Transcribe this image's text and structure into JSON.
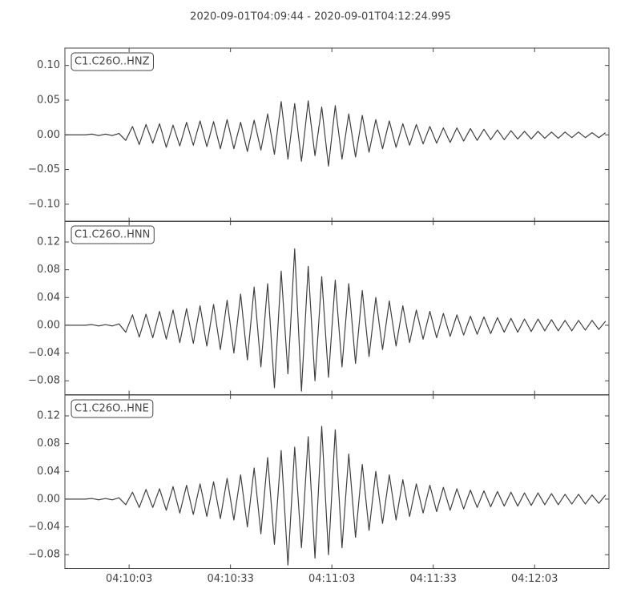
{
  "title": "2020-09-01T04:09:44  -  2020-09-01T04:12:24.995",
  "chart_data": [
    {
      "type": "line",
      "label": "C1.C26O..HNZ",
      "color": "#404040",
      "xlim": [
        "04:09:44",
        "04:12:24.995"
      ],
      "ylim": [
        -0.125,
        0.125
      ],
      "yticks": [
        {
          "value": -0.1,
          "label": "−0.10"
        },
        {
          "value": -0.05,
          "label": "−0.05"
        },
        {
          "value": 0,
          "label": "0.00"
        },
        {
          "value": 0.05,
          "label": "0.05"
        },
        {
          "value": 0.1,
          "label": "0.10"
        }
      ],
      "x": [
        "04:09:44",
        "04:09:46",
        "04:09:48",
        "04:09:50",
        "04:09:52",
        "04:09:54",
        "04:09:56",
        "04:09:58",
        "04:10:00",
        "04:10:02",
        "04:10:04",
        "04:10:06",
        "04:10:08",
        "04:10:10",
        "04:10:12",
        "04:10:14",
        "04:10:16",
        "04:10:18",
        "04:10:20",
        "04:10:22",
        "04:10:24",
        "04:10:26",
        "04:10:28",
        "04:10:30",
        "04:10:32",
        "04:10:34",
        "04:10:36",
        "04:10:38",
        "04:10:40",
        "04:10:42",
        "04:10:44",
        "04:10:46",
        "04:10:48",
        "04:10:50",
        "04:10:52",
        "04:10:54",
        "04:10:56",
        "04:10:58",
        "04:11:00",
        "04:11:02",
        "04:11:04",
        "04:11:06",
        "04:11:08",
        "04:11:10",
        "04:11:12",
        "04:11:14",
        "04:11:16",
        "04:11:18",
        "04:11:20",
        "04:11:22",
        "04:11:24",
        "04:11:26",
        "04:11:28",
        "04:11:30",
        "04:11:32",
        "04:11:34",
        "04:11:36",
        "04:11:38",
        "04:11:40",
        "04:11:42",
        "04:11:44",
        "04:11:46",
        "04:11:48",
        "04:11:50",
        "04:11:52",
        "04:11:54",
        "04:11:56",
        "04:11:58",
        "04:12:00",
        "04:12:02",
        "04:12:04",
        "04:12:06",
        "04:12:08",
        "04:12:10",
        "04:12:12",
        "04:12:14",
        "04:12:16",
        "04:12:18",
        "04:12:20",
        "04:12:22",
        "04:12:24"
      ],
      "values": [
        0,
        0,
        0,
        0,
        0.001,
        -0.001,
        0.001,
        -0.001,
        0.002,
        -0.008,
        0.012,
        -0.014,
        0.015,
        -0.012,
        0.016,
        -0.018,
        0.014,
        -0.016,
        0.018,
        -0.015,
        0.02,
        -0.017,
        0.019,
        -0.02,
        0.022,
        -0.02,
        0.018,
        -0.024,
        0.021,
        -0.022,
        0.03,
        -0.028,
        0.048,
        -0.035,
        0.045,
        -0.038,
        0.049,
        -0.03,
        0.04,
        -0.045,
        0.042,
        -0.035,
        0.03,
        -0.032,
        0.028,
        -0.025,
        0.022,
        -0.02,
        0.02,
        -0.018,
        0.016,
        -0.015,
        0.015,
        -0.013,
        0.012,
        -0.012,
        0.01,
        -0.011,
        0.01,
        -0.009,
        0.009,
        -0.008,
        0.008,
        -0.007,
        0.007,
        -0.007,
        0.006,
        -0.006,
        0.005,
        -0.006,
        0.005,
        -0.005,
        0.004,
        -0.005,
        0.004,
        -0.004,
        0.004,
        -0.004,
        0.003,
        -0.004,
        0.003
      ]
    },
    {
      "type": "line",
      "label": "C1.C26O..HNN",
      "color": "#404040",
      "xlim": [
        "04:09:44",
        "04:12:24.995"
      ],
      "ylim": [
        -0.1,
        0.15
      ],
      "yticks": [
        {
          "value": -0.08,
          "label": "−0.08"
        },
        {
          "value": -0.04,
          "label": "−0.04"
        },
        {
          "value": 0,
          "label": "0.00"
        },
        {
          "value": 0.04,
          "label": "0.04"
        },
        {
          "value": 0.08,
          "label": "0.08"
        },
        {
          "value": 0.12,
          "label": "0.12"
        }
      ],
      "x": [
        "04:09:44",
        "04:09:46",
        "04:09:48",
        "04:09:50",
        "04:09:52",
        "04:09:54",
        "04:09:56",
        "04:09:58",
        "04:10:00",
        "04:10:02",
        "04:10:04",
        "04:10:06",
        "04:10:08",
        "04:10:10",
        "04:10:12",
        "04:10:14",
        "04:10:16",
        "04:10:18",
        "04:10:20",
        "04:10:22",
        "04:10:24",
        "04:10:26",
        "04:10:28",
        "04:10:30",
        "04:10:32",
        "04:10:34",
        "04:10:36",
        "04:10:38",
        "04:10:40",
        "04:10:42",
        "04:10:44",
        "04:10:46",
        "04:10:48",
        "04:10:50",
        "04:10:52",
        "04:10:54",
        "04:10:56",
        "04:10:58",
        "04:11:00",
        "04:11:02",
        "04:11:04",
        "04:11:06",
        "04:11:08",
        "04:11:10",
        "04:11:12",
        "04:11:14",
        "04:11:16",
        "04:11:18",
        "04:11:20",
        "04:11:22",
        "04:11:24",
        "04:11:26",
        "04:11:28",
        "04:11:30",
        "04:11:32",
        "04:11:34",
        "04:11:36",
        "04:11:38",
        "04:11:40",
        "04:11:42",
        "04:11:44",
        "04:11:46",
        "04:11:48",
        "04:11:50",
        "04:11:52",
        "04:11:54",
        "04:11:56",
        "04:11:58",
        "04:12:00",
        "04:12:02",
        "04:12:04",
        "04:12:06",
        "04:12:08",
        "04:12:10",
        "04:12:12",
        "04:12:14",
        "04:12:16",
        "04:12:18",
        "04:12:20",
        "04:12:22",
        "04:12:24"
      ],
      "values": [
        0,
        0,
        0,
        0,
        0.001,
        -0.001,
        0.001,
        -0.001,
        0.002,
        -0.01,
        0.015,
        -0.017,
        0.016,
        -0.018,
        0.02,
        -0.02,
        0.022,
        -0.025,
        0.024,
        -0.026,
        0.028,
        -0.03,
        0.03,
        -0.035,
        0.036,
        -0.04,
        0.045,
        -0.05,
        0.055,
        -0.06,
        0.06,
        -0.09,
        0.078,
        -0.07,
        0.11,
        -0.095,
        0.085,
        -0.08,
        0.07,
        -0.075,
        0.065,
        -0.06,
        0.06,
        -0.055,
        0.05,
        -0.045,
        0.04,
        -0.035,
        0.035,
        -0.03,
        0.028,
        -0.025,
        0.022,
        -0.02,
        0.02,
        -0.018,
        0.017,
        -0.016,
        0.015,
        -0.014,
        0.013,
        -0.013,
        0.012,
        -0.012,
        0.011,
        -0.01,
        0.01,
        -0.01,
        0.009,
        -0.009,
        0.009,
        -0.008,
        0.008,
        -0.008,
        0.007,
        -0.008,
        0.007,
        -0.007,
        0.007,
        -0.006,
        0.006
      ]
    },
    {
      "type": "line",
      "label": "C1.C26O..HNE",
      "color": "#404040",
      "xlim": [
        "04:09:44",
        "04:12:24.995"
      ],
      "xticks": [
        "04:10:03",
        "04:10:33",
        "04:11:03",
        "04:11:33",
        "04:12:03"
      ],
      "ylim": [
        -0.1,
        0.15
      ],
      "yticks": [
        {
          "value": -0.08,
          "label": "−0.08"
        },
        {
          "value": -0.04,
          "label": "−0.04"
        },
        {
          "value": 0,
          "label": "0.00"
        },
        {
          "value": 0.04,
          "label": "0.04"
        },
        {
          "value": 0.08,
          "label": "0.08"
        },
        {
          "value": 0.12,
          "label": "0.12"
        }
      ],
      "x": [
        "04:09:44",
        "04:09:46",
        "04:09:48",
        "04:09:50",
        "04:09:52",
        "04:09:54",
        "04:09:56",
        "04:09:58",
        "04:10:00",
        "04:10:02",
        "04:10:04",
        "04:10:06",
        "04:10:08",
        "04:10:10",
        "04:10:12",
        "04:10:14",
        "04:10:16",
        "04:10:18",
        "04:10:20",
        "04:10:22",
        "04:10:24",
        "04:10:26",
        "04:10:28",
        "04:10:30",
        "04:10:32",
        "04:10:34",
        "04:10:36",
        "04:10:38",
        "04:10:40",
        "04:10:42",
        "04:10:44",
        "04:10:46",
        "04:10:48",
        "04:10:50",
        "04:10:52",
        "04:10:54",
        "04:10:56",
        "04:10:58",
        "04:11:00",
        "04:11:02",
        "04:11:04",
        "04:11:06",
        "04:11:08",
        "04:11:10",
        "04:11:12",
        "04:11:14",
        "04:11:16",
        "04:11:18",
        "04:11:20",
        "04:11:22",
        "04:11:24",
        "04:11:26",
        "04:11:28",
        "04:11:30",
        "04:11:32",
        "04:11:34",
        "04:11:36",
        "04:11:38",
        "04:11:40",
        "04:11:42",
        "04:11:44",
        "04:11:46",
        "04:11:48",
        "04:11:50",
        "04:11:52",
        "04:11:54",
        "04:11:56",
        "04:11:58",
        "04:12:00",
        "04:12:02",
        "04:12:04",
        "04:12:06",
        "04:12:08",
        "04:12:10",
        "04:12:12",
        "04:12:14",
        "04:12:16",
        "04:12:18",
        "04:12:20",
        "04:12:22",
        "04:12:24"
      ],
      "values": [
        0,
        0,
        0,
        0,
        0.001,
        -0.001,
        0.001,
        -0.001,
        0.002,
        -0.008,
        0.01,
        -0.012,
        0.014,
        -0.012,
        0.015,
        -0.016,
        0.018,
        -0.02,
        0.02,
        -0.022,
        0.022,
        -0.025,
        0.025,
        -0.028,
        0.03,
        -0.03,
        0.035,
        -0.04,
        0.045,
        -0.05,
        0.06,
        -0.065,
        0.07,
        -0.095,
        0.075,
        -0.07,
        0.09,
        -0.085,
        0.105,
        -0.08,
        0.1,
        -0.07,
        0.065,
        -0.055,
        0.05,
        -0.045,
        0.04,
        -0.035,
        0.035,
        -0.03,
        0.028,
        -0.025,
        0.022,
        -0.02,
        0.02,
        -0.018,
        0.017,
        -0.016,
        0.015,
        -0.014,
        0.013,
        -0.012,
        0.012,
        -0.011,
        0.011,
        -0.01,
        0.01,
        -0.01,
        0.009,
        -0.009,
        0.009,
        -0.008,
        0.008,
        -0.008,
        0.007,
        -0.007,
        0.007,
        -0.007,
        0.006,
        -0.006,
        0.006
      ]
    }
  ]
}
